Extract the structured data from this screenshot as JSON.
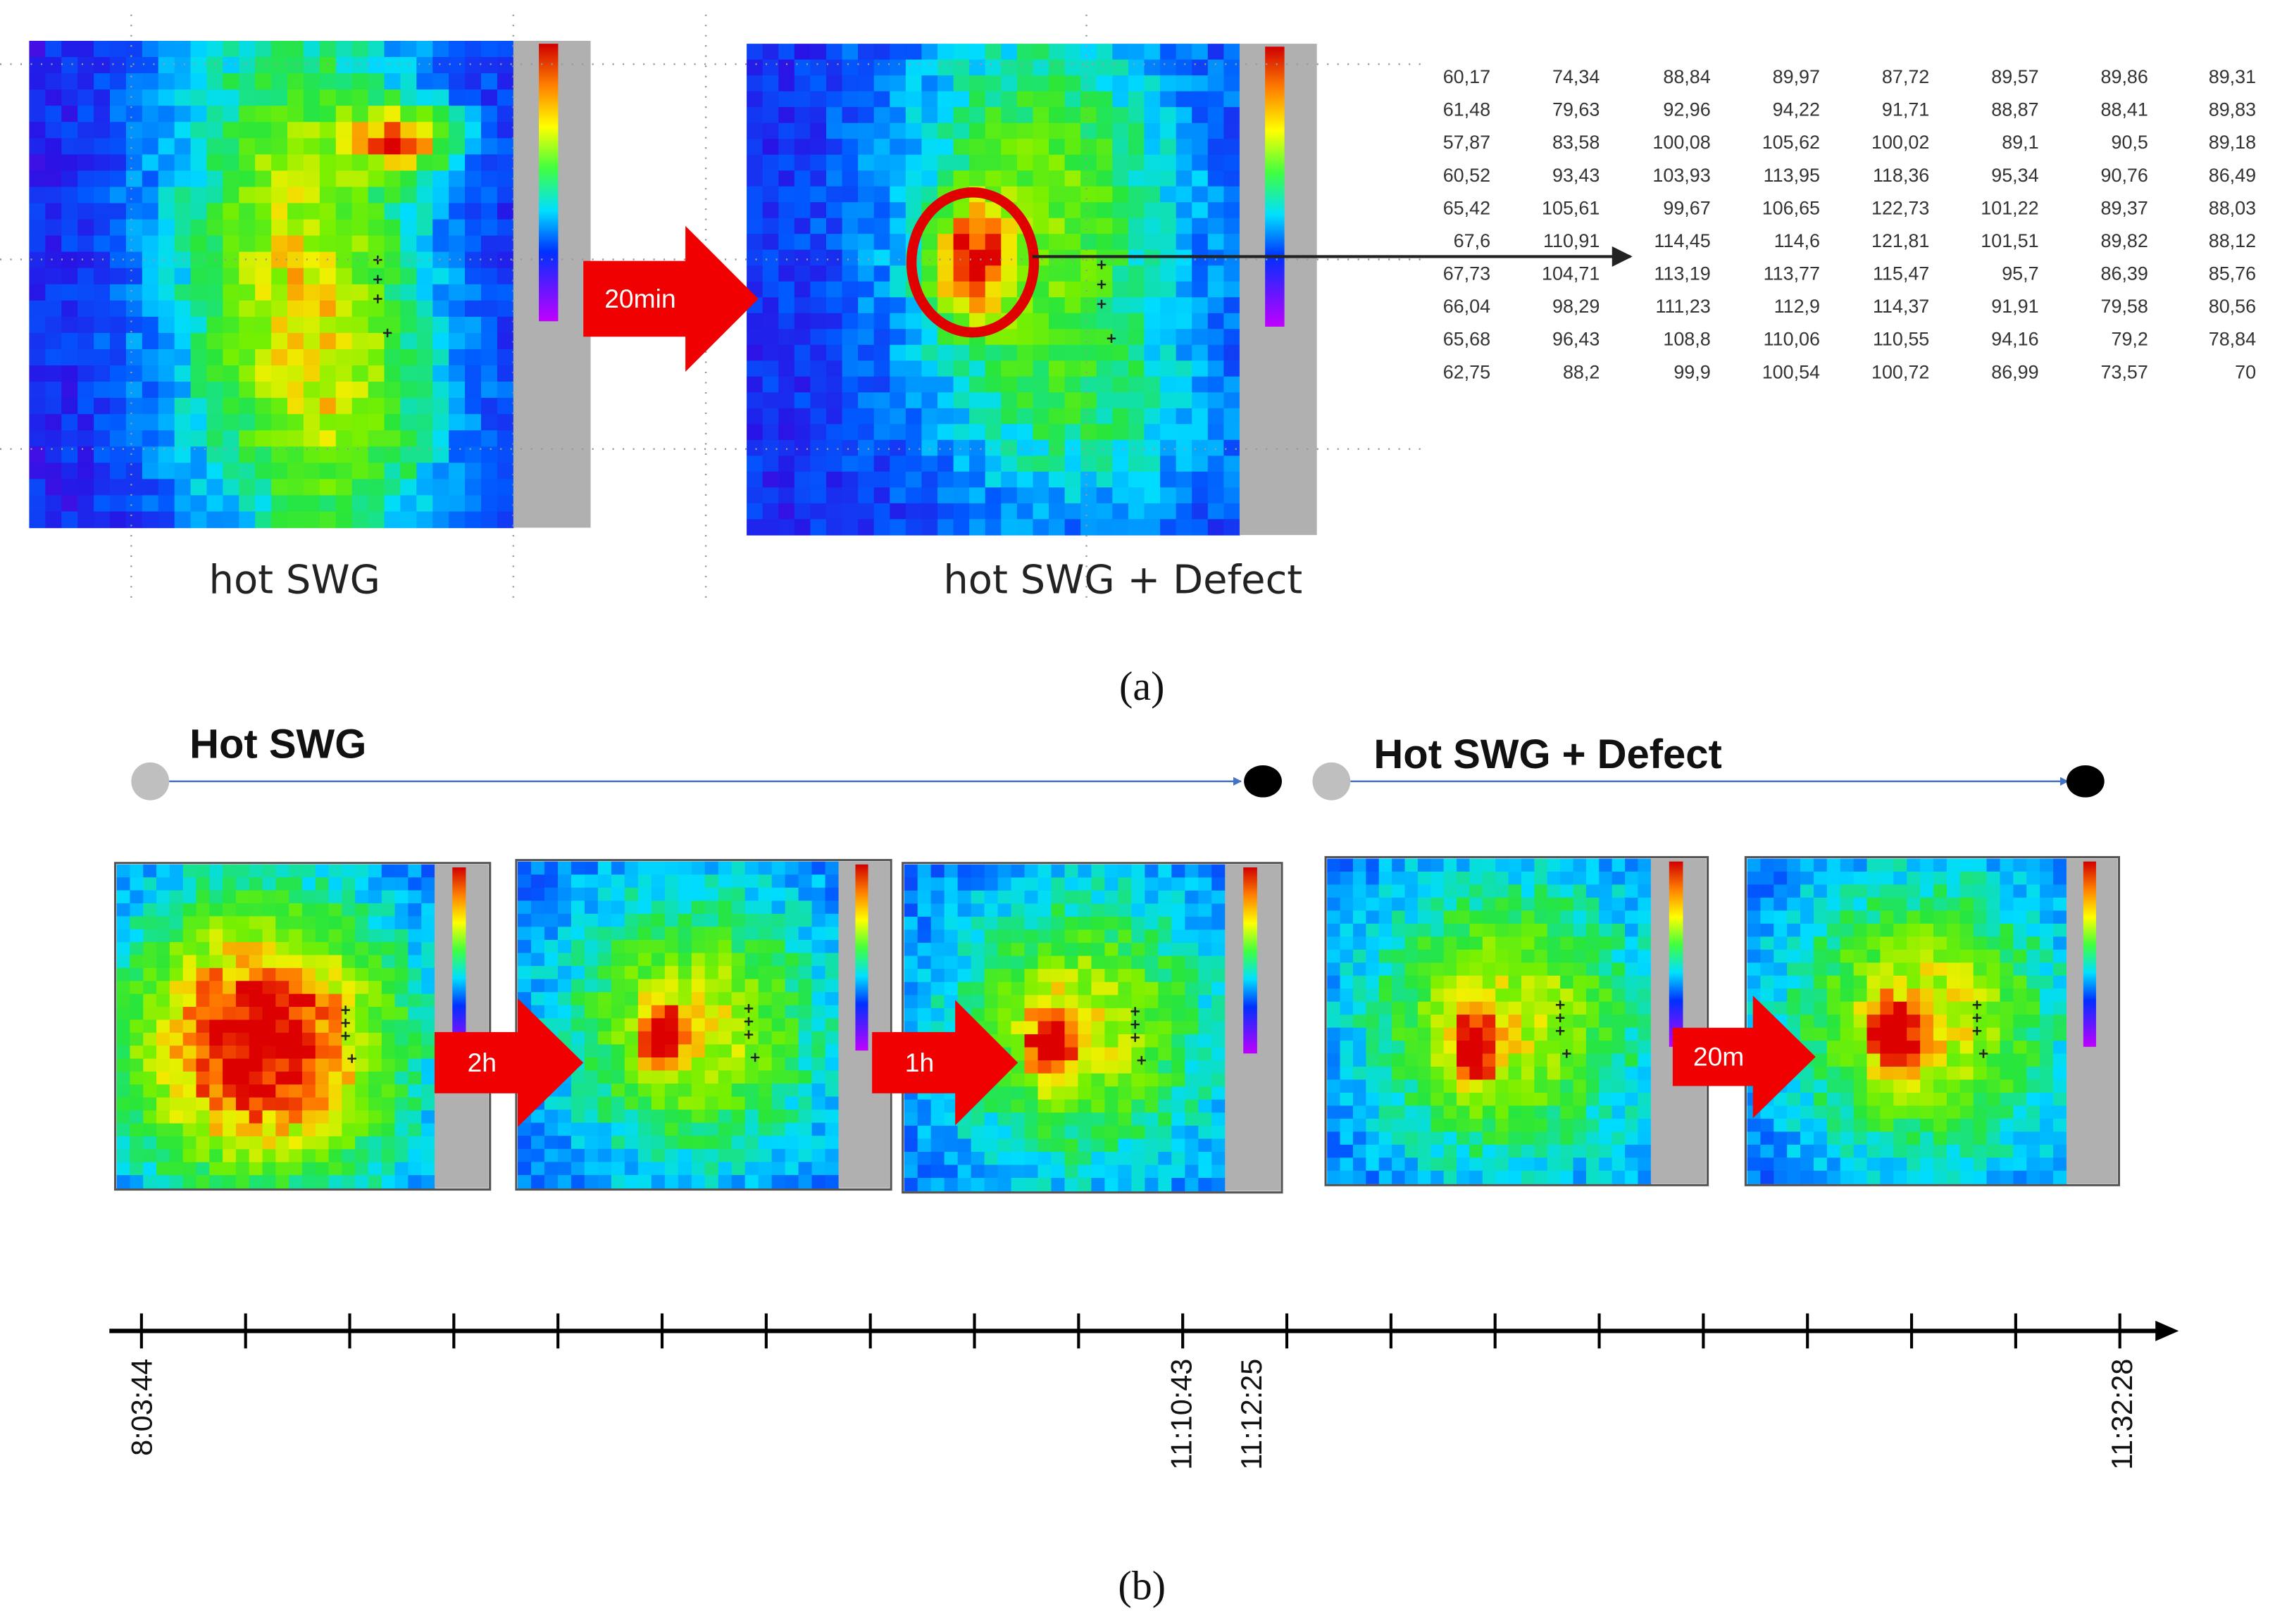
{
  "panel_a": {
    "label": "(a)",
    "captions": [
      "hot SWG",
      "hot SWG + Defect"
    ],
    "arrow_label": "20min",
    "table": {
      "rows": [
        [
          "60,17",
          "74,34",
          "88,84",
          "89,97",
          "87,72",
          "89,57",
          "89,86",
          "89,31"
        ],
        [
          "61,48",
          "79,63",
          "92,96",
          "94,22",
          "91,71",
          "88,87",
          "88,41",
          "89,83"
        ],
        [
          "57,87",
          "83,58",
          "100,08",
          "105,62",
          "100,02",
          "89,1",
          "90,5",
          "89,18"
        ],
        [
          "60,52",
          "93,43",
          "103,93",
          {
            "text": "113,95",
            "color": "#ff2a2a"
          },
          {
            "text": "118,36",
            "color": "#ff2a2a"
          },
          "95,34",
          "90,76",
          "86,49"
        ],
        [
          "65,42",
          "105,61",
          "99,67",
          "106,65",
          {
            "text": "122,73",
            "color": "#ff2a2a"
          },
          "101,22",
          "89,37",
          "88,03"
        ],
        [
          "67,6",
          "110,91",
          {
            "text": "114,45",
            "color": "#ff2a2a"
          },
          {
            "text": "114,6",
            "color": "#ff2a2a"
          },
          {
            "text": "121,81",
            "color": "#ff2a2a"
          },
          "101,51",
          "89,82",
          "88,12"
        ],
        [
          "67,73",
          "104,71",
          {
            "text": "113,19",
            "color": "#ff2a2a"
          },
          {
            "text": "113,77",
            "color": "#ff2a2a"
          },
          {
            "text": "115,47",
            "color": "#ff2a2a"
          },
          "95,7",
          "86,39",
          "85,76"
        ],
        [
          "66,04",
          "98,29",
          {
            "text": "111,23",
            "color": "#ff2a2a"
          },
          {
            "text": "112,9",
            "color": "#ff2a2a"
          },
          {
            "text": "114,37",
            "color": "#ff2a2a"
          },
          "91,91",
          "79,58",
          "80,56"
        ],
        [
          "65,68",
          "96,43",
          "108,8",
          "110,06",
          "110,55",
          "94,16",
          "79,2",
          "78,84"
        ],
        [
          "62,75",
          "88,2",
          "99,9",
          "100,54",
          "100,72",
          "86,99",
          "73,57",
          "70"
        ]
      ]
    }
  },
  "panel_b": {
    "label": "(b)",
    "groups": [
      {
        "title": "Hot SWG"
      },
      {
        "title": "Hot SWG + Defect"
      }
    ],
    "arrow_labels": [
      "2h",
      "1h",
      "20m"
    ],
    "timeline_labels": [
      "8:03:44",
      "11:10:43",
      "11:12:25",
      "11:32:28"
    ]
  }
}
